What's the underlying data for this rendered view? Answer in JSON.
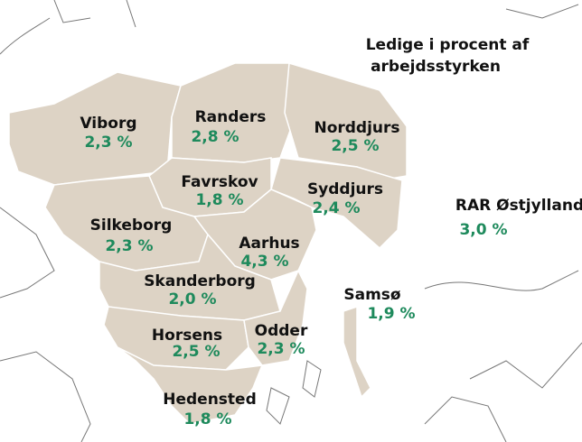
{
  "title": {
    "lines": [
      "Ledige i procent af",
      "arbejdsstyrken"
    ]
  },
  "regions": [
    {
      "name": "Viborg",
      "value": "2,3 %"
    },
    {
      "name": "Randers",
      "value": "2,8 %"
    },
    {
      "name": "Norddjurs",
      "value": "2,5 %"
    },
    {
      "name": "Favrskov",
      "value": "1,8 %"
    },
    {
      "name": "Syddjurs",
      "value": "2,4 %"
    },
    {
      "name": "Silkeborg",
      "value": "2,3 %"
    },
    {
      "name": "Aarhus",
      "value": "4,3 %"
    },
    {
      "name": "Skanderborg",
      "value": "2,0 %"
    },
    {
      "name": "Samsø",
      "value": "1,9 %"
    },
    {
      "name": "Horsens",
      "value": "2,5 %"
    },
    {
      "name": "Odder",
      "value": "2,3 %"
    },
    {
      "name": "Hedensted",
      "value": "1,8 %"
    }
  ],
  "total": {
    "name": "RAR Østjylland",
    "value": "3,0 %"
  }
}
